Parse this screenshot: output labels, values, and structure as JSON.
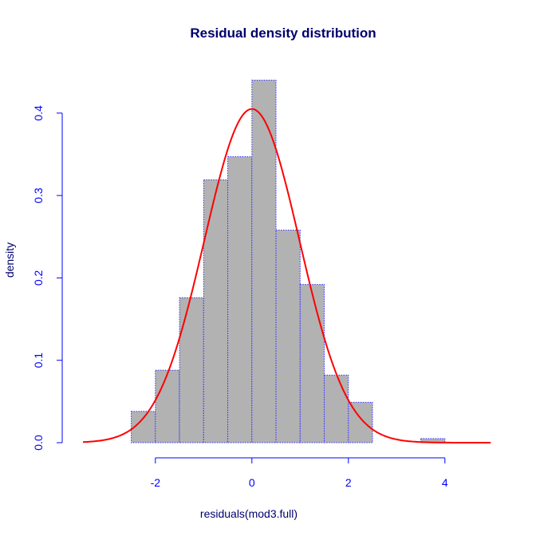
{
  "chart_data": {
    "type": "bar",
    "title": "Residual density distribution",
    "xlabel": "residuals(mod3.full)",
    "ylabel": "density",
    "xlim": [
      -3.6,
      4.95
    ],
    "ylim": [
      0,
      0.44
    ],
    "x_ticks": [
      -2,
      0,
      2,
      4
    ],
    "y_ticks": [
      0.0,
      0.1,
      0.2,
      0.3,
      0.4
    ],
    "bins": [
      {
        "x0": -2.5,
        "x1": -2.0,
        "density": 0.038
      },
      {
        "x0": -2.0,
        "x1": -1.5,
        "density": 0.088
      },
      {
        "x0": -1.5,
        "x1": -1.0,
        "density": 0.176
      },
      {
        "x0": -1.0,
        "x1": -0.5,
        "density": 0.319
      },
      {
        "x0": -0.5,
        "x1": 0.0,
        "density": 0.347
      },
      {
        "x0": 0.0,
        "x1": 0.5,
        "density": 0.44
      },
      {
        "x0": 0.5,
        "x1": 1.0,
        "density": 0.258
      },
      {
        "x0": 1.0,
        "x1": 1.5,
        "density": 0.192
      },
      {
        "x0": 1.5,
        "x1": 2.0,
        "density": 0.082
      },
      {
        "x0": 2.0,
        "x1": 2.5,
        "density": 0.049
      },
      {
        "x0": 2.5,
        "x1": 3.0,
        "density": 0.0
      },
      {
        "x0": 3.0,
        "x1": 3.5,
        "density": 0.0
      },
      {
        "x0": 3.5,
        "x1": 4.0,
        "density": 0.005
      }
    ],
    "density_curve": {
      "mean": 0.0,
      "sd": 0.985,
      "x_range": [
        -3.5,
        4.95
      ]
    },
    "colors": {
      "bar_fill": "#b2b2b2",
      "bar_border": "#3333ff",
      "curve": "#ff0000",
      "axis": "#0000ff",
      "title": "#00006e",
      "ylabel": "#00006e",
      "xlabel": "#00006e"
    }
  }
}
